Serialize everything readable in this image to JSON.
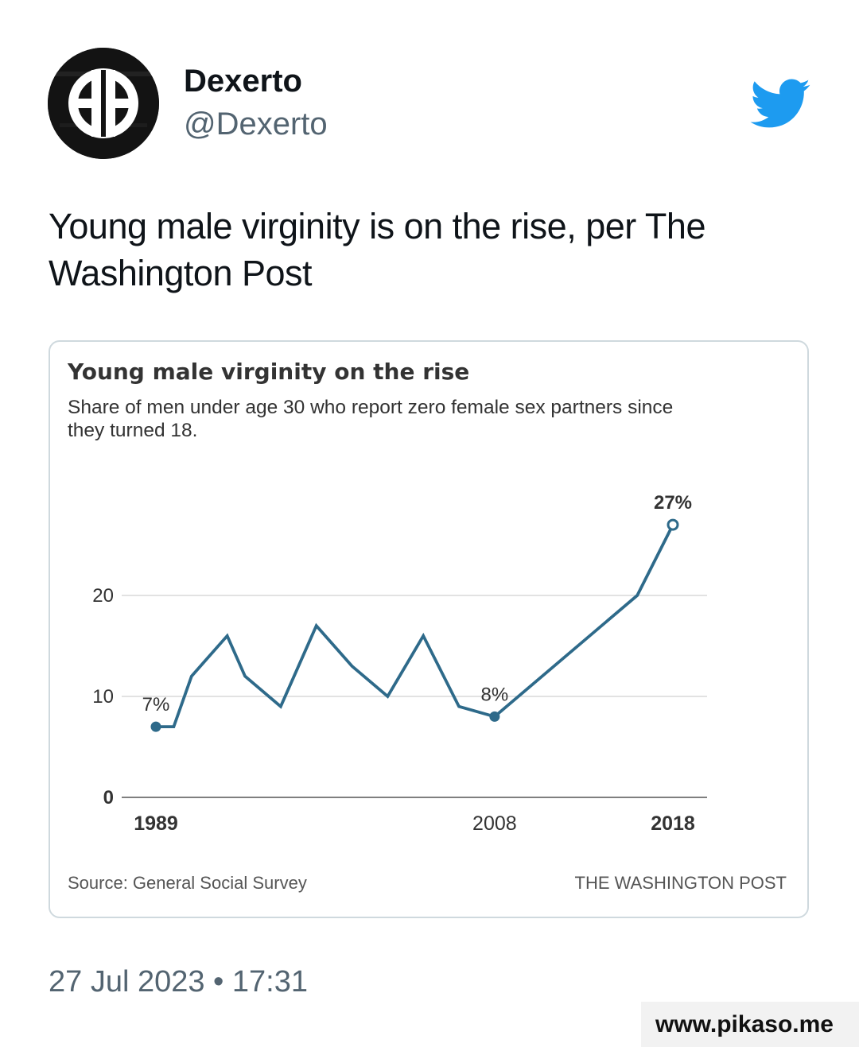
{
  "tweet": {
    "display_name": "Dexerto",
    "handle": "@Dexerto",
    "text": "Young male virginity is on the rise, per The Washington Post",
    "timestamp": "27 Jul 2023 • 17:31",
    "platform_icon": "twitter-bird-icon",
    "brand_color": "#1d9bf0"
  },
  "watermark": "www.pikaso.me",
  "chart_data": {
    "type": "line",
    "title": "Young male virginity on the rise",
    "subtitle_lines": [
      "Share of men under age 30 who report zero female sex partners since",
      "they turned 18."
    ],
    "source": "Source: General Social Survey",
    "credit": "THE WASHINGTON POST",
    "xlim": [
      1989,
      2018
    ],
    "ylim": [
      0,
      30
    ],
    "y_ticks": [
      {
        "value": 0,
        "label": "0"
      },
      {
        "value": 10,
        "label": "10"
      },
      {
        "value": 20,
        "label": "20"
      }
    ],
    "x_ticks": [
      {
        "value": 1989,
        "label": "1989"
      },
      {
        "value": 2008,
        "label": "2008"
      },
      {
        "value": 2018,
        "label": "2018"
      }
    ],
    "series": [
      {
        "color": "#2e6a8a",
        "points": [
          {
            "x": 1989,
            "y": 7
          },
          {
            "x": 1990,
            "y": 7
          },
          {
            "x": 1991,
            "y": 12
          },
          {
            "x": 1993,
            "y": 16
          },
          {
            "x": 1994,
            "y": 12
          },
          {
            "x": 1996,
            "y": 9
          },
          {
            "x": 1998,
            "y": 17
          },
          {
            "x": 2000,
            "y": 13
          },
          {
            "x": 2002,
            "y": 10
          },
          {
            "x": 2004,
            "y": 16
          },
          {
            "x": 2006,
            "y": 9
          },
          {
            "x": 2008,
            "y": 8
          },
          {
            "x": 2016,
            "y": 20
          },
          {
            "x": 2018,
            "y": 27
          }
        ]
      }
    ],
    "annotations": [
      {
        "x": 1989,
        "y": 7,
        "label": "7%",
        "marker": "filled",
        "bold": false
      },
      {
        "x": 2008,
        "y": 8,
        "label": "8%",
        "marker": "filled",
        "bold": false
      },
      {
        "x": 2018,
        "y": 27,
        "label": "27%",
        "marker": "open",
        "bold": true
      }
    ]
  }
}
